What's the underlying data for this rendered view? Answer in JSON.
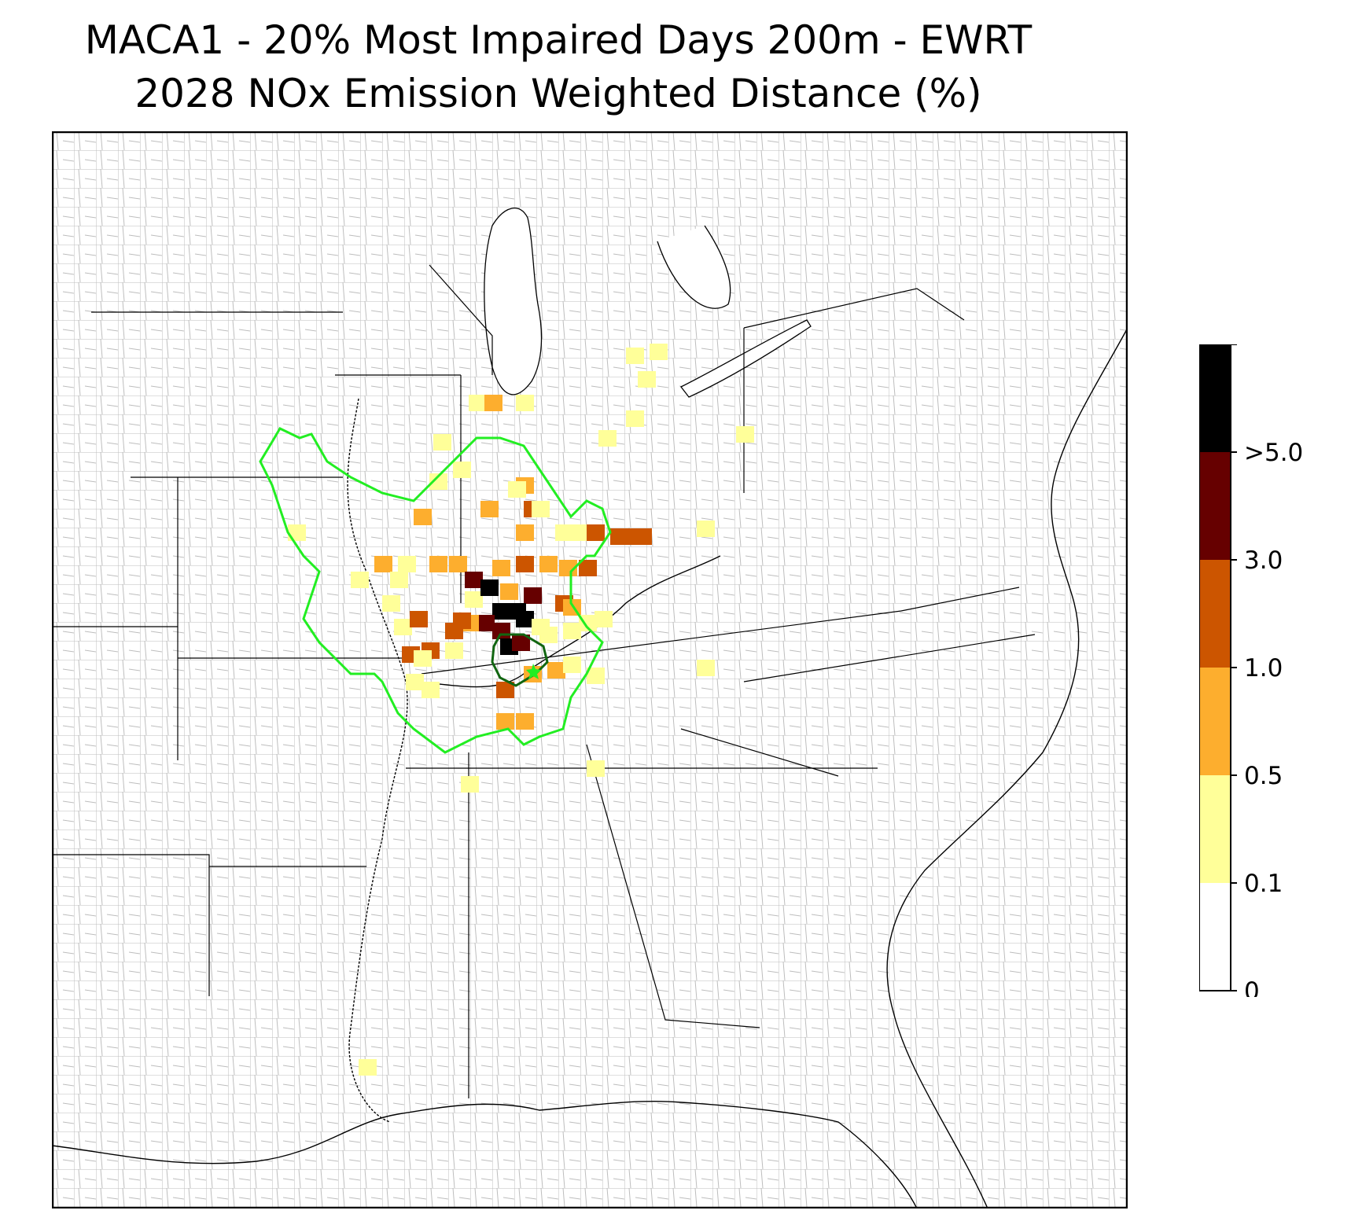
{
  "title": {
    "line1": "MACA1 - 20% Most Impaired Days 200m - EWRT",
    "line2": "2028 NOx Emission Weighted Distance (%)"
  },
  "colorbar": {
    "ticks": [
      "0",
      "0.1",
      "0.5",
      "1.0",
      "3.0",
      ">5.0"
    ],
    "bins": [
      {
        "range": "0-0.1",
        "color": "#ffffff"
      },
      {
        "range": "0.1-0.5",
        "color": "#ffff99"
      },
      {
        "range": "0.5-1.0",
        "color": "#fdae2e"
      },
      {
        "range": "1.0-3.0",
        "color": "#cc5500"
      },
      {
        "range": "3.0-5.0",
        "color": "#660000"
      },
      {
        "range": ">5.0",
        "color": "#000000"
      }
    ]
  },
  "colors": {
    "aoi_outer": "#22ee22",
    "aoi_inner": "#116611",
    "state_border": "#000000",
    "county_border": "#aaaaaa"
  }
}
